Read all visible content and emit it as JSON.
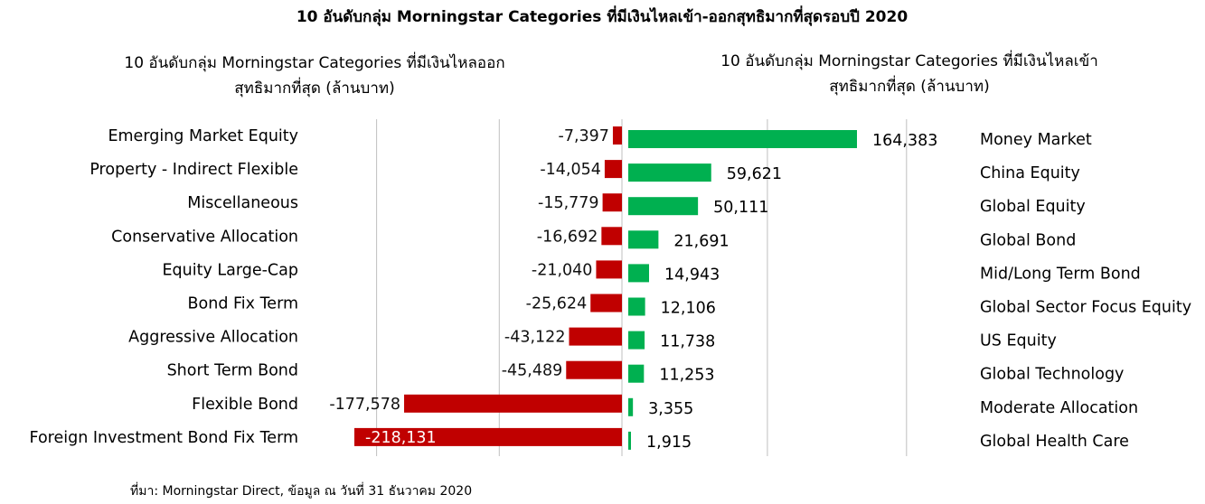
{
  "title": "10 อันดับกลุ่ม Morningstar Categories ที่มีเงินไหลเข้า-ออกสุทธิมากที่สุดรอบปี 2020",
  "source": "ที่มา: Morningstar Direct, ข้อมูล ณ วันที่ 31 ธันวาคม 2020",
  "colors": {
    "outflow": "#c00000",
    "inflow": "#00b050",
    "grid": "#bfbfbf",
    "outflow_inside_label": "#ffffff"
  },
  "chart_data": [
    {
      "type": "bar",
      "orientation": "horizontal",
      "title_lines": [
        "10 อันดับกลุ่ม Morningstar Categories ที่มีเงินไหลออก",
        "สุทธิมากที่สุด (ล้านบาท)"
      ],
      "categories": [
        "Emerging Market Equity",
        "Property - Indirect Flexible",
        "Miscellaneous",
        "Conservative Allocation",
        "Equity Large-Cap",
        "Bond Fix Term",
        "Aggressive Allocation",
        "Short Term Bond",
        "Flexible Bond",
        "Foreign Investment Bond Fix Term"
      ],
      "values": [
        -7397,
        -14054,
        -15779,
        -16692,
        -21040,
        -25624,
        -43122,
        -45489,
        -177578,
        -218131
      ],
      "value_labels": [
        "-7,397",
        "-14,054",
        "-15,779",
        "-16,692",
        "-21,040",
        "-25,624",
        "-43,122",
        "-45,489",
        "-177,578",
        "-218,131"
      ],
      "xlim": [
        -250000,
        0
      ],
      "grid": true,
      "gridlines": [
        -200000,
        -100000
      ],
      "color": "#c00000"
    },
    {
      "type": "bar",
      "orientation": "horizontal",
      "title_lines": [
        "10 อันดับกลุ่ม Morningstar Categories ที่มีเงินไหลเข้า",
        "สุทธิมากที่สุด (ล้านบาท)"
      ],
      "categories": [
        "Money Market",
        "China Equity",
        "Global Equity",
        "Global Bond",
        "Mid/Long Term Bond",
        "Global Sector Focus Equity",
        "US Equity",
        "Global Technology",
        "Moderate Allocation",
        "Global Health Care"
      ],
      "values": [
        164383,
        59621,
        50111,
        21691,
        14943,
        12106,
        11738,
        11253,
        3355,
        1915
      ],
      "value_labels": [
        "164,383",
        "59,621",
        "50,111",
        "21,691",
        "14,943",
        "12,106",
        "11,738",
        "11,253",
        "3,355",
        "1,915"
      ],
      "xlim": [
        0,
        250000
      ],
      "grid": true,
      "gridlines": [
        100000,
        200000
      ],
      "color": "#00b050"
    }
  ]
}
